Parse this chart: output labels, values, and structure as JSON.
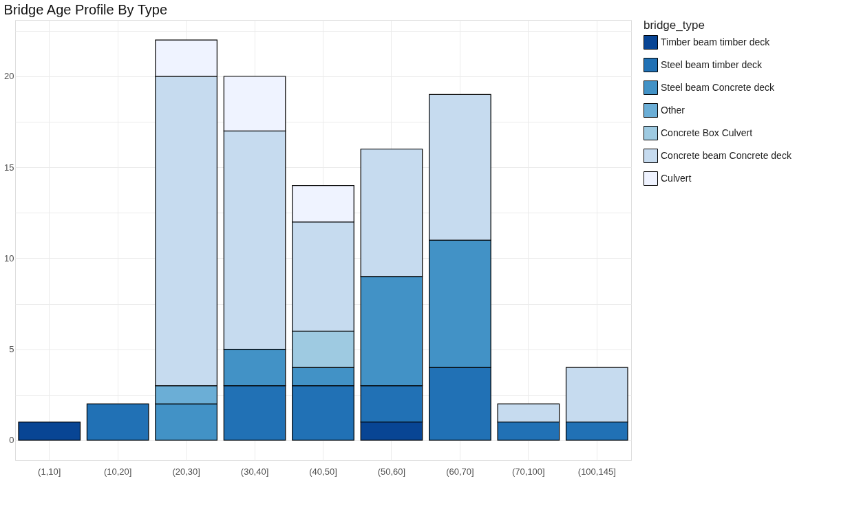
{
  "chart_data": {
    "type": "bar",
    "title": "Bridge Age Profile By Type",
    "stacked": true,
    "legend": "right",
    "legend_title": "bridge_type",
    "grid": true,
    "categories": [
      "(1,10]",
      "(10,20]",
      "(20,30]",
      "(30,40]",
      "(40,50]",
      "(50,60]",
      "(60,70]",
      "(70,100]",
      "(100,145]"
    ],
    "ylim": [
      -1.1,
      23.1
    ],
    "yticks": [
      0,
      {
        "value": 2.5,
        "label": null
      },
      5,
      {
        "value": 7.5,
        "label": null
      },
      10,
      {
        "value": 12.5,
        "label": null
      },
      15,
      {
        "value": 17.5,
        "label": null
      },
      20,
      {
        "value": 22.5,
        "label": null
      }
    ],
    "series": [
      {
        "name": "Timber beam timber deck",
        "color": "#084594",
        "values": [
          1,
          null,
          null,
          null,
          null,
          1,
          null,
          null,
          null
        ]
      },
      {
        "name": "Steel beam timber deck",
        "color": "#2171b5",
        "values": [
          null,
          2,
          null,
          3,
          3,
          2,
          4,
          1,
          1
        ]
      },
      {
        "name": "Steel beam Concrete deck",
        "color": "#4292c6",
        "values": [
          null,
          null,
          2,
          2,
          1,
          6,
          7,
          null,
          null
        ]
      },
      {
        "name": "Other",
        "color": "#6baed6",
        "values": [
          null,
          null,
          1,
          null,
          null,
          null,
          null,
          null,
          null
        ]
      },
      {
        "name": "Concrete Box Culvert",
        "color": "#9ecae1",
        "values": [
          null,
          null,
          null,
          null,
          2,
          null,
          null,
          null,
          null
        ]
      },
      {
        "name": "Concrete beam Concrete deck",
        "color": "#c6dbef",
        "values": [
          null,
          null,
          17,
          12,
          6,
          7,
          8,
          1,
          3
        ]
      },
      {
        "name": "Culvert",
        "color": "#eff3ff",
        "values": [
          null,
          null,
          2,
          3,
          2,
          null,
          null,
          null,
          null
        ]
      }
    ]
  }
}
